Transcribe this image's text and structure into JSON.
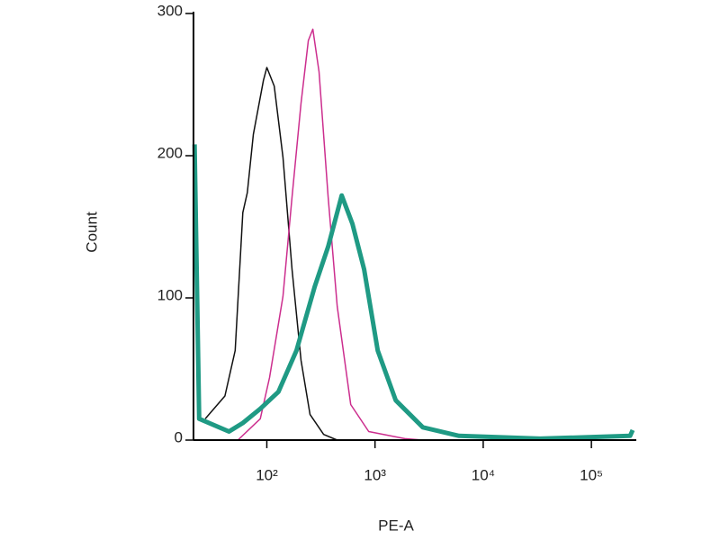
{
  "chart_data": {
    "type": "line",
    "x_label": "PE-A",
    "y_label": "Count",
    "x_scale": "log",
    "xlim": [
      21,
      260000
    ],
    "ylim": [
      0,
      300
    ],
    "xticks": [
      {
        "value": 100,
        "label": "10²"
      },
      {
        "value": 1000,
        "label": "10³"
      },
      {
        "value": 10000,
        "label": "10⁴"
      },
      {
        "value": 100000,
        "label": "10⁵"
      }
    ],
    "yticks": [
      0,
      100,
      200,
      300
    ],
    "series": [
      {
        "color": "#111111",
        "width": 1.5,
        "x": [
          27,
          41,
          51,
          60,
          66,
          75,
          93,
          100,
          117,
          141,
          171,
          207,
          251,
          335,
          447
        ],
        "values": [
          15,
          31,
          63,
          160,
          174,
          215,
          253,
          262,
          249,
          199,
          120,
          56,
          18,
          4,
          0
        ]
      },
      {
        "color": "#cc2e8e",
        "width": 1.5,
        "x": [
          54,
          87,
          106,
          141,
          171,
          207,
          242,
          266,
          304,
          369,
          447,
          596,
          874,
          1884,
          2765
        ],
        "values": [
          0,
          15,
          44,
          101,
          171,
          237,
          281,
          289,
          259,
          171,
          94,
          25,
          6,
          1,
          0
        ]
      },
      {
        "color": "#1f9a84",
        "width": 5,
        "x": [
          21.5,
          23.7,
          44.7,
          60,
          87,
          128,
          188,
          277,
          369,
          492,
          619,
          794,
          1059,
          1555,
          2765,
          5957,
          33500,
          228000,
          241000
        ],
        "values": [
          208,
          15,
          6,
          12,
          22,
          34,
          63,
          108,
          136,
          172,
          152,
          120,
          63,
          28,
          9,
          3,
          1,
          3,
          7
        ]
      }
    ]
  }
}
